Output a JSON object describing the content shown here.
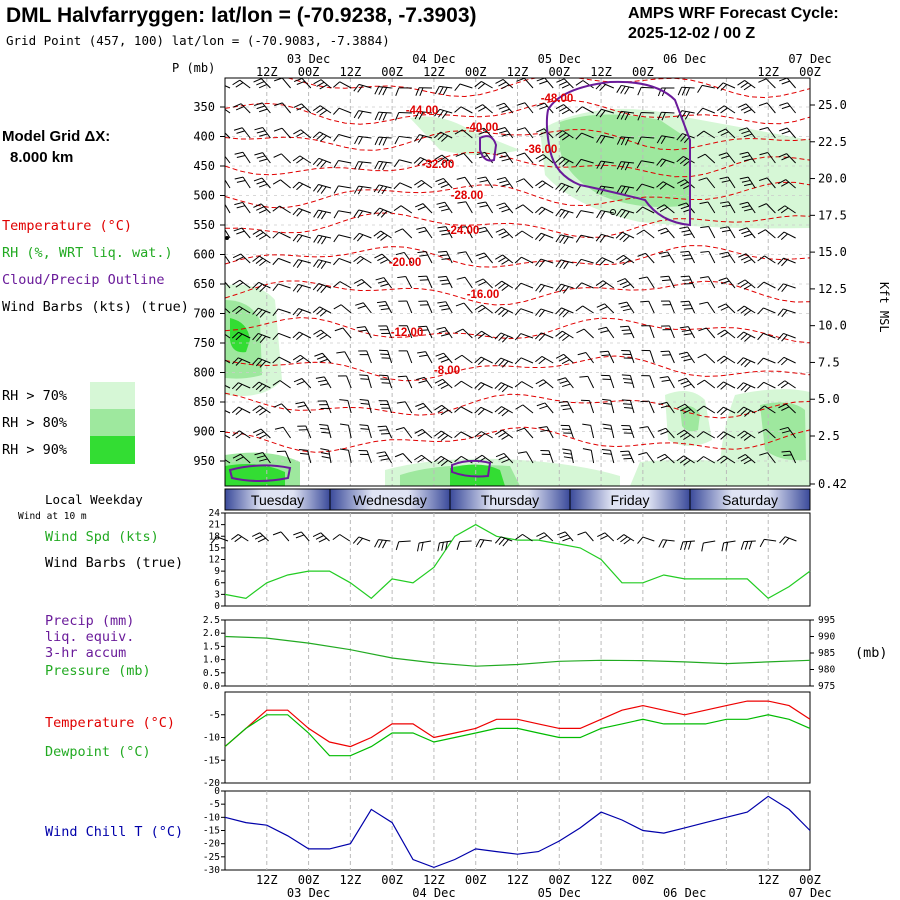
{
  "header": {
    "title": "DML Halvfarryggen:  lat/lon = (-70.9238, -7.3903)",
    "subtitle": "Grid Point (457, 100) lat/lon = (-70.9083, -7.3884)",
    "cycle_line1": "AMPS WRF Forecast Cycle:",
    "cycle_line2": "2025-12-02 / 00  Z"
  },
  "legend": {
    "model_grid_l1": "Model Grid ΔX:",
    "model_grid_l2": "8.000 km",
    "temperature": "Temperature (°C)",
    "rh": "RH (%, WRT liq. wat.)",
    "cloud": "Cloud/Precip Outline",
    "wind": "Wind Barbs (kts) (true)",
    "rh70": "RH > 70%",
    "rh80": "RH > 80%",
    "rh90": "RH > 90%"
  },
  "colors": {
    "temperature": "#e00000",
    "rh": "#22bb22",
    "cloud": "#6a1b9a",
    "dewpoint": "#00bb00",
    "windchill": "#0000aa",
    "rh70": "#d6f7d6",
    "rh80": "#9ee89e",
    "rh90": "#33dd33"
  },
  "time_axis": {
    "top_dates": [
      "03 Dec",
      "04 Dec",
      "05 Dec",
      "06 Dec",
      "07 Dec"
    ],
    "hour_labels": [
      "12Z",
      "00Z",
      "12Z",
      "00Z",
      "12Z",
      "00Z",
      "12Z",
      "00Z",
      "12Z",
      "00Z"
    ],
    "bottom_dates": [
      "03 Dec",
      "04 Dec",
      "05 Dec",
      "06 Dec",
      "07 Dec"
    ]
  },
  "weekday": {
    "title": "Local Weekday",
    "wind_note": "Wind at 10 m",
    "days": [
      "Tuesday",
      "Wednesday",
      "Thursday",
      "Friday",
      "Saturday"
    ]
  },
  "chart_data": [
    {
      "type": "contour",
      "title": "Vertical cross-section (time-height)",
      "ylabel_left": "P (mb)",
      "ylabel_right": "Kft MSL",
      "y_ticks_left": [
        "350",
        "400",
        "450",
        "500",
        "550",
        "600",
        "650",
        "700",
        "750",
        "800",
        "850",
        "900",
        "950"
      ],
      "y_ticks_right": [
        "25.0",
        "22.5",
        "20.0",
        "17.5",
        "15.0",
        "12.5",
        "10.0",
        "7.5",
        "5.0",
        "2.5",
        "0.42"
      ],
      "temperature_contour_labels": [
        "-48.00",
        "-44.00",
        "-40.00",
        "-36.00",
        "-32.00",
        "-28.00",
        "-24.00",
        "-20.00",
        "-16.00",
        "-12.00",
        "-8.00"
      ]
    },
    {
      "type": "line",
      "title": "Wind Spd (kts)",
      "label_barbs": "Wind Barbs (true)",
      "y_ticks": [
        "24",
        "21",
        "18",
        "15",
        "12",
        "9",
        "6",
        "3",
        "0"
      ],
      "ylim": [
        0,
        24
      ],
      "x_hours": [
        0,
        6,
        12,
        18,
        24,
        30,
        36,
        42,
        48,
        54,
        60,
        66,
        72,
        78,
        84,
        90,
        96,
        102,
        108,
        114,
        120,
        126,
        132,
        138,
        144,
        150,
        156,
        162,
        168
      ],
      "series": [
        {
          "name": "Wind Spd (kts)",
          "values": [
            3,
            2,
            6,
            8,
            9,
            9,
            6,
            2,
            7,
            6,
            10,
            18,
            21,
            18,
            17,
            17,
            16,
            15,
            12,
            6,
            6,
            8,
            7,
            7,
            7,
            7,
            2,
            5,
            9
          ]
        }
      ]
    },
    {
      "type": "line",
      "title": "Pressure (mb)",
      "precip_label_l1": "Precip (mm)",
      "precip_label_l2": "liq. equiv.",
      "precip_label_l3": "3-hr accum",
      "y_ticks_left": [
        "2.5",
        "2.0",
        "1.5",
        "1.0",
        "0.5",
        "0.0"
      ],
      "y_ticks_right": [
        "995",
        "990",
        "985",
        "980",
        "975"
      ],
      "ylabel_right": "(mb)",
      "ylim_left": [
        0,
        2.5
      ],
      "ylim_right": [
        975,
        995
      ],
      "x_hours": [
        0,
        12,
        24,
        36,
        48,
        60,
        72,
        84,
        96,
        108,
        120,
        132,
        144,
        156,
        168
      ],
      "series": [
        {
          "name": "Pressure (mb)",
          "values": [
            990,
            989.5,
            988,
            986,
            983.5,
            982,
            981,
            981.5,
            982.5,
            982.8,
            982.7,
            982.3,
            981.8,
            982.3,
            982.8
          ]
        }
      ]
    },
    {
      "type": "line",
      "title": "Temperature / Dewpoint",
      "label_temp": "Temperature (°C)",
      "label_dew": "Dewpoint (°C)",
      "y_ticks": [
        "-5",
        "-10",
        "-15",
        "-20"
      ],
      "ylim": [
        -20,
        0
      ],
      "x_hours": [
        0,
        6,
        12,
        18,
        24,
        30,
        36,
        42,
        48,
        54,
        60,
        66,
        72,
        78,
        84,
        90,
        96,
        102,
        108,
        114,
        120,
        126,
        132,
        138,
        144,
        150,
        156,
        162,
        168
      ],
      "series": [
        {
          "name": "Temperature (°C)",
          "values": [
            -12,
            -8,
            -4,
            -4,
            -8,
            -11,
            -12,
            -10,
            -7,
            -7,
            -10,
            -9,
            -8,
            -6,
            -6,
            -7,
            -8,
            -8,
            -6,
            -4,
            -3,
            -4,
            -5,
            -4,
            -3,
            -2,
            -2,
            -3,
            -6
          ]
        },
        {
          "name": "Dewpoint (°C)",
          "values": [
            -12,
            -8,
            -5,
            -5,
            -9,
            -14,
            -14,
            -12,
            -9,
            -9,
            -11,
            -10,
            -9,
            -8,
            -8,
            -9,
            -10,
            -10,
            -8,
            -7,
            -6,
            -7,
            -7,
            -7,
            -6,
            -6,
            -5,
            -6,
            -8
          ]
        }
      ]
    },
    {
      "type": "line",
      "title": "Wind Chill T (°C)",
      "y_ticks": [
        "0",
        "-5",
        "-10",
        "-15",
        "-20",
        "-25",
        "-30"
      ],
      "ylim": [
        -30,
        0
      ],
      "x_hours": [
        0,
        6,
        12,
        18,
        24,
        30,
        36,
        42,
        48,
        54,
        60,
        66,
        72,
        78,
        84,
        90,
        96,
        102,
        108,
        114,
        120,
        126,
        132,
        138,
        144,
        150,
        156,
        162,
        168
      ],
      "series": [
        {
          "name": "Wind Chill T (°C)",
          "values": [
            -10,
            -12,
            -13,
            -17,
            -22,
            -22,
            -20,
            -7,
            -12,
            -26,
            -29,
            -26,
            -22,
            -23,
            -24,
            -23,
            -19,
            -14,
            -8,
            -11,
            -15,
            -16,
            -14,
            -12,
            -10,
            -8,
            -2,
            -7,
            -15
          ]
        }
      ]
    }
  ]
}
